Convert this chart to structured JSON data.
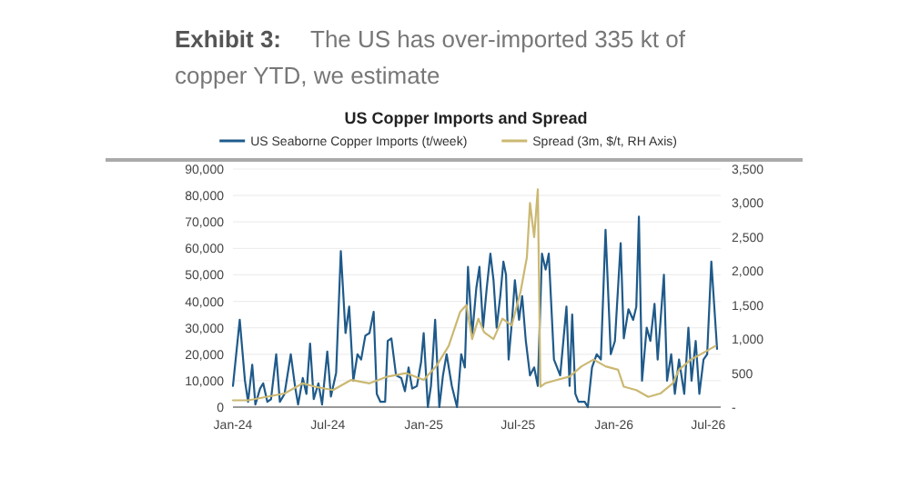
{
  "chart_data": {
    "type": "line",
    "title": "US Copper Imports and Spread",
    "subtitle": "The US has over-imported 335 kt of copper YTD, we estimate",
    "annotations": [
      "Exhibit 3:"
    ],
    "legend": "top",
    "grid": "y",
    "xlim": [
      "2024-01-01",
      "2026-07-25"
    ],
    "xticks": [
      {
        "value": "2024-01-01",
        "label": "Jan-24"
      },
      {
        "value": "2024-07-01",
        "label": "Jul-24"
      },
      {
        "value": "2025-01-01",
        "label": "Jan-25"
      },
      {
        "value": "2025-07-01",
        "label": "Jul-25"
      },
      {
        "value": "2026-01-01",
        "label": "Jan-26"
      },
      {
        "value": "2026-07-01",
        "label": "Jul-26"
      }
    ],
    "ylim": [
      0,
      90000
    ],
    "yticks": [
      0,
      {
        "value": 10000,
        "label": "10,000"
      },
      {
        "value": 20000,
        "label": "20,000"
      },
      {
        "value": 30000,
        "label": "30,000"
      },
      {
        "value": 40000,
        "label": "40,000"
      },
      {
        "value": 50000,
        "label": "50,000"
      },
      {
        "value": 60000,
        "label": "60,000"
      },
      {
        "value": 70000,
        "label": "70,000"
      },
      {
        "value": 80000,
        "label": "80,000"
      },
      {
        "value": 90000,
        "label": "90,000"
      }
    ],
    "y2lim": [
      0,
      3500
    ],
    "y2ticks": [
      {
        "value": 0,
        "label": "-"
      },
      500,
      {
        "value": 1000,
        "label": "1,000"
      },
      {
        "value": 1500,
        "label": "1,500"
      },
      {
        "value": 2000,
        "label": "2,000"
      },
      {
        "value": 2500,
        "label": "2,500"
      },
      {
        "value": 3000,
        "label": "3,000"
      },
      {
        "value": 3500,
        "label": "3,500"
      }
    ],
    "series": [
      {
        "name": "US Seaborne Copper Imports (t/week)",
        "color": "#1f5a8a",
        "x": [
          "2024-01-01",
          "2024-01-14",
          "2024-01-24",
          "2024-01-30",
          "2024-02-07",
          "2024-02-13",
          "2024-02-22",
          "2024-02-28",
          "2024-03-07",
          "2024-03-14",
          "2024-03-24",
          "2024-03-31",
          "2024-04-09",
          "2024-04-21",
          "2024-04-29",
          "2024-05-05",
          "2024-05-14",
          "2024-05-21",
          "2024-05-28",
          "2024-06-04",
          "2024-06-13",
          "2024-06-20",
          "2024-06-30",
          "2024-07-07",
          "2024-07-17",
          "2024-07-26",
          "2024-08-04",
          "2024-08-11",
          "2024-08-19",
          "2024-08-27",
          "2024-09-03",
          "2024-09-11",
          "2024-09-19",
          "2024-09-27",
          "2024-10-03",
          "2024-10-10",
          "2024-10-19",
          "2024-10-24",
          "2024-10-31",
          "2024-11-09",
          "2024-11-19",
          "2024-11-26",
          "2024-12-03",
          "2024-12-10",
          "2024-12-19",
          "2024-12-27",
          "2025-01-01",
          "2025-01-09",
          "2025-01-15",
          "2025-01-23",
          "2025-01-31",
          "2025-02-07",
          "2025-02-14",
          "2025-02-24",
          "2025-03-06",
          "2025-03-14",
          "2025-03-21",
          "2025-03-27",
          "2025-04-04",
          "2025-04-12",
          "2025-04-18",
          "2025-04-25",
          "2025-05-02",
          "2025-05-09",
          "2025-05-15",
          "2025-05-21",
          "2025-05-28",
          "2025-06-03",
          "2025-06-08",
          "2025-06-13",
          "2025-06-20",
          "2025-06-25",
          "2025-07-03",
          "2025-07-09",
          "2025-07-16",
          "2025-07-24",
          "2025-08-01",
          "2025-08-08",
          "2025-08-16",
          "2025-08-23",
          "2025-08-29",
          "2025-09-08",
          "2025-09-20",
          "2025-10-02",
          "2025-10-08",
          "2025-10-13",
          "2025-10-19",
          "2025-10-25",
          "2025-11-06",
          "2025-11-12",
          "2025-11-20",
          "2025-11-29",
          "2025-12-07",
          "2025-12-16",
          "2025-12-26",
          "2026-01-03",
          "2026-01-14",
          "2026-01-20",
          "2026-01-29",
          "2026-02-07",
          "2026-02-13",
          "2026-02-18",
          "2026-02-24",
          "2026-03-05",
          "2026-03-12",
          "2026-03-20",
          "2026-03-26",
          "2026-04-07",
          "2026-04-13",
          "2026-04-21",
          "2026-04-28",
          "2026-05-06",
          "2026-05-16",
          "2026-05-24",
          "2026-05-30",
          "2026-06-07",
          "2026-06-14",
          "2026-06-22",
          "2026-06-29",
          "2026-07-07",
          "2026-07-18"
        ],
        "values": [
          8000,
          33000,
          10000,
          2000,
          16000,
          1000,
          7000,
          9000,
          2000,
          3000,
          20000,
          2000,
          5000,
          20000,
          8000,
          1000,
          11000,
          5000,
          24000,
          3000,
          9000,
          1000,
          21000,
          4000,
          13000,
          59000,
          28000,
          38000,
          10000,
          20000,
          18000,
          27000,
          28000,
          36000,
          5000,
          2000,
          2000,
          25000,
          26000,
          12000,
          11000,
          6000,
          15000,
          7000,
          8000,
          17000,
          28000,
          0,
          8000,
          33000,
          0,
          12000,
          20000,
          8000,
          0,
          20000,
          15000,
          53000,
          27000,
          45000,
          53000,
          30000,
          45000,
          58000,
          48000,
          30000,
          42000,
          55000,
          50000,
          18000,
          34000,
          48000,
          33000,
          42000,
          25000,
          12000,
          15000,
          8000,
          58000,
          52000,
          58000,
          18000,
          12000,
          38000,
          8000,
          35000,
          5000,
          2000,
          2000,
          0,
          15000,
          20000,
          18000,
          67000,
          20000,
          25000,
          62000,
          26000,
          37000,
          33000,
          38000,
          72000,
          10000,
          30000,
          25000,
          39000,
          18000,
          50000,
          10000,
          20000,
          5000,
          18000,
          5000,
          30000,
          10000,
          25000,
          5000,
          18000,
          20000,
          55000,
          22000
        ]
      },
      {
        "name": "Spread (3m, $/t, RH Axis)",
        "color": "#cbb872",
        "axis": "y2",
        "x": [
          "2024-01-01",
          "2024-01-30",
          "2024-03-05",
          "2024-04-09",
          "2024-05-14",
          "2024-06-06",
          "2024-07-11",
          "2024-08-15",
          "2024-09-19",
          "2024-10-24",
          "2024-11-28",
          "2025-01-01",
          "2025-01-25",
          "2025-02-18",
          "2025-03-12",
          "2025-03-24",
          "2025-04-04",
          "2025-04-16",
          "2025-04-27",
          "2025-05-15",
          "2025-06-01",
          "2025-06-19",
          "2025-07-06",
          "2025-07-18",
          "2025-07-24",
          "2025-08-01",
          "2025-08-08",
          "2025-08-13",
          "2025-08-22",
          "2025-09-14",
          "2025-10-08",
          "2025-10-31",
          "2025-11-23",
          "2025-12-16",
          "2026-01-09",
          "2026-01-20",
          "2026-02-13",
          "2026-03-08",
          "2026-03-31",
          "2026-04-24",
          "2026-05-06",
          "2026-05-29",
          "2026-06-22",
          "2026-07-15"
        ],
        "values": [
          100,
          100,
          150,
          200,
          350,
          300,
          250,
          400,
          350,
          450,
          500,
          400,
          600,
          900,
          1400,
          1500,
          1000,
          1300,
          1100,
          1000,
          1300,
          1200,
          1700,
          2200,
          3000,
          2500,
          3200,
          300,
          350,
          400,
          450,
          600,
          700,
          600,
          550,
          300,
          250,
          150,
          200,
          350,
          550,
          700,
          800,
          900
        ]
      }
    ]
  }
}
